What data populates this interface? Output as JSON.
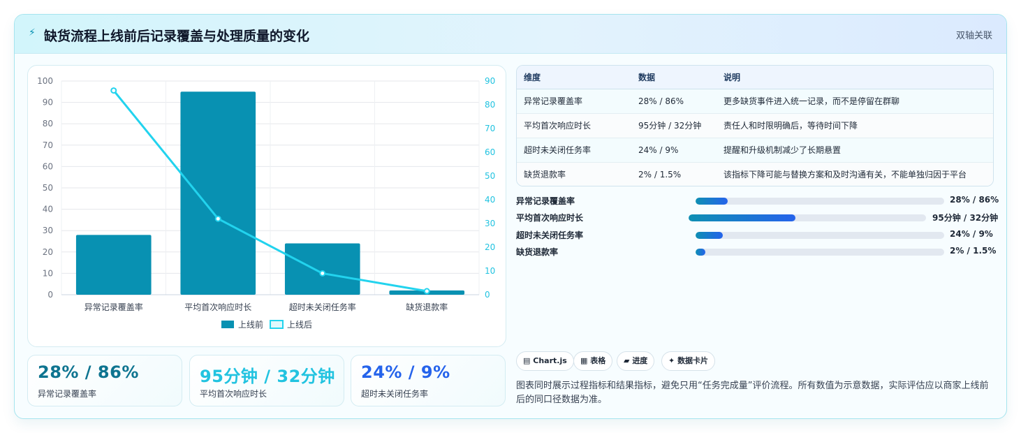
{
  "header": {
    "icon": "lightning-icon",
    "title": "缺货流程上线前后记录覆盖与处理质量的变化",
    "tag": "双轴关联"
  },
  "chart_data": {
    "type": "bar",
    "categories": [
      "异常记录覆盖率",
      "平均首次响应时长",
      "超时未关闭任务率",
      "缺货退款率"
    ],
    "series": [
      {
        "name": "上线前",
        "type": "bar",
        "axis": "left",
        "values": [
          28,
          95,
          24,
          2
        ],
        "color": "#0891b2"
      },
      {
        "name": "上线后",
        "type": "line",
        "axis": "right",
        "values": [
          86,
          32,
          9,
          1.5
        ],
        "color": "#22d3ee"
      }
    ],
    "y_left": {
      "min": 0,
      "max": 100,
      "ticks": [
        0,
        10,
        20,
        30,
        40,
        50,
        60,
        70,
        80,
        90,
        100
      ]
    },
    "y_right": {
      "min": 0,
      "max": 90,
      "ticks": [
        0,
        10,
        20,
        30,
        40,
        50,
        60,
        70,
        80,
        90
      ]
    },
    "grid": true,
    "legend": "bottom"
  },
  "kpis": [
    {
      "value": "28% / 86%",
      "label": "异常记录覆盖率",
      "color": "#0e7490"
    },
    {
      "value": "95分钟 / 32分钟",
      "label": "平均首次响应时长",
      "color": "#22c3e0"
    },
    {
      "value": "24% / 9%",
      "label": "超时未关闭任务率",
      "color": "#2563eb"
    }
  ],
  "table": {
    "headers": [
      "维度",
      "数据",
      "说明"
    ],
    "rows": [
      [
        "异常记录覆盖率",
        "28% / 86%",
        "更多缺货事件进入统一记录，而不是停留在群聊"
      ],
      [
        "平均首次响应时长",
        "95分钟 / 32分钟",
        "责任人和时限明确后，等待时间下降"
      ],
      [
        "超时未关闭任务率",
        "24% / 9%",
        "提醒和升级机制减少了长期悬置"
      ],
      [
        "缺货退款率",
        "2% / 1.5%",
        "该指标下降可能与替换方案和及时沟通有关，不能单独归因于平台"
      ]
    ]
  },
  "progress": [
    {
      "label": "异常记录覆盖率",
      "value": "28% / 86%",
      "fill": 0.13
    },
    {
      "label": "平均首次响应时长",
      "value": "95分钟 / 32分钟",
      "fill": 0.45
    },
    {
      "label": "超时未关闭任务率",
      "value": "24% / 9%",
      "fill": 0.11
    },
    {
      "label": "缺货退款率",
      "value": "2% / 1.5%",
      "fill": 0.04
    }
  ],
  "chips": [
    {
      "icon": "chart-icon",
      "label": "Chart.js"
    },
    {
      "icon": "table-icon",
      "label": "表格"
    },
    {
      "icon": "progress-icon",
      "label": "进度"
    },
    {
      "icon": "sparkle-icon",
      "label": "数据卡片"
    }
  ],
  "note": "图表同时展示过程指标和结果指标，避免只用“任务完成量”评价流程。所有数值为示意数据，实际评估应以商家上线前后的同口径数据为准。"
}
